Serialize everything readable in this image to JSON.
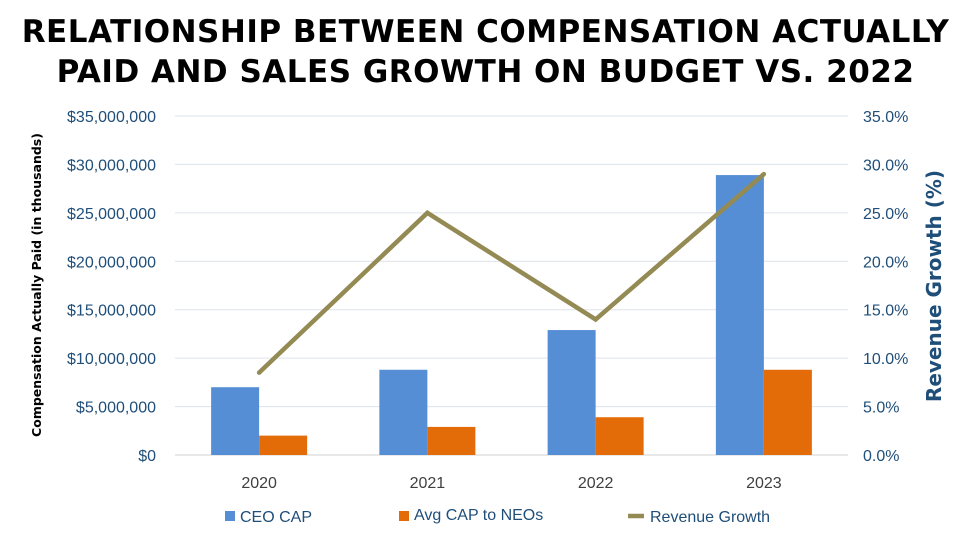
{
  "chart_data": {
    "type": "bar",
    "title_line1": "RELATIONSHIP BETWEEN COMPENSATION ACTUALLY",
    "title_line2": "PAID AND SALES GROWTH ON BUDGET VS. 2022",
    "categories": [
      "2020",
      "2021",
      "2022",
      "2023"
    ],
    "series": [
      {
        "name": "CEO CAP",
        "kind": "bar",
        "axis": "left",
        "color": "#558ed5",
        "values": [
          7000000,
          8800000,
          12900000,
          28900000
        ]
      },
      {
        "name": "Avg CAP to NEOs",
        "kind": "bar",
        "axis": "left",
        "color": "#e36c09",
        "values": [
          2000000,
          2900000,
          3900000,
          8800000
        ]
      },
      {
        "name": "Revenue Growth",
        "kind": "line",
        "axis": "right",
        "color": "#948a54",
        "values": [
          8.5,
          25.0,
          14.0,
          29.0
        ]
      }
    ],
    "ylabel": "Compensation Actually Paid  (in thousands)",
    "y2label": "Revenue Growth (%)",
    "ylim": [
      0,
      35000000
    ],
    "y2lim": [
      0,
      35
    ],
    "yticks": [
      "$0",
      "$5,000,000",
      "$10,000,000",
      "$15,000,000",
      "$20,000,000",
      "$25,000,000",
      "$30,000,000",
      "$35,000,000"
    ],
    "y2ticks": [
      "0.0%",
      "5.0%",
      "10.0%",
      "15.0%",
      "20.0%",
      "25.0%",
      "30.0%",
      "35.0%"
    ],
    "grid": true,
    "legend_position": "bottom"
  }
}
